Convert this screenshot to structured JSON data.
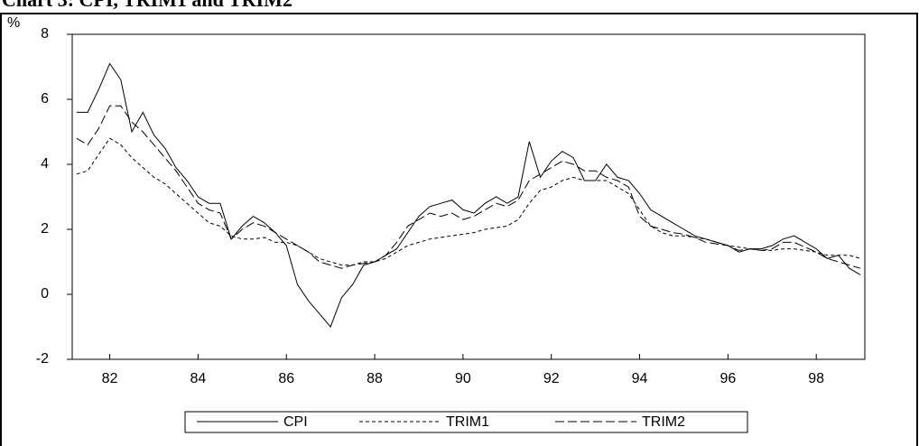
{
  "chart_data": {
    "type": "line",
    "title": "Chart 3: CPI, TRIM1 and TRIM2",
    "y_label": "%",
    "x": [
      81.25,
      81.5,
      81.75,
      82,
      82.25,
      82.5,
      82.75,
      83,
      83.25,
      83.5,
      83.75,
      84,
      84.25,
      84.5,
      84.75,
      85,
      85.25,
      85.5,
      85.75,
      86,
      86.25,
      86.5,
      86.75,
      87,
      87.25,
      87.5,
      87.75,
      88,
      88.25,
      88.5,
      88.75,
      89,
      89.25,
      89.5,
      89.75,
      90,
      90.25,
      90.5,
      90.75,
      91,
      91.25,
      91.5,
      91.75,
      92,
      92.25,
      92.5,
      92.75,
      93,
      93.25,
      93.5,
      93.75,
      94,
      94.25,
      94.5,
      94.75,
      95,
      95.25,
      95.5,
      95.75,
      96,
      96.25,
      96.5,
      96.75,
      97,
      97.25,
      97.5,
      97.75,
      98,
      98.25,
      98.5,
      98.75,
      99
    ],
    "series": [
      {
        "name": "CPI",
        "color": "#000000",
        "line_style": "solid",
        "values": [
          5.6,
          5.6,
          6.3,
          7.1,
          6.6,
          5.0,
          5.6,
          4.9,
          4.5,
          3.9,
          3.5,
          3.0,
          2.8,
          2.8,
          1.7,
          2.1,
          2.4,
          2.2,
          1.9,
          1.5,
          0.3,
          -0.2,
          -0.6,
          -1.0,
          -0.1,
          0.3,
          0.9,
          1.0,
          1.2,
          1.4,
          1.9,
          2.4,
          2.7,
          2.8,
          2.9,
          2.6,
          2.5,
          2.8,
          3.0,
          2.8,
          3.0,
          4.7,
          3.6,
          4.1,
          4.4,
          4.2,
          3.5,
          3.5,
          4.0,
          3.6,
          3.5,
          3.1,
          2.6,
          2.4,
          2.2,
          2.0,
          1.8,
          1.7,
          1.6,
          1.5,
          1.3,
          1.4,
          1.4,
          1.5,
          1.7,
          1.8,
          1.6,
          1.4,
          1.1,
          1.2,
          0.8,
          0.6
        ]
      },
      {
        "name": "TRIM1",
        "color": "#000000",
        "line_style": "short-dash",
        "values": [
          3.7,
          3.8,
          4.3,
          4.8,
          4.6,
          4.2,
          3.9,
          3.6,
          3.4,
          3.1,
          2.8,
          2.5,
          2.2,
          2.1,
          1.8,
          1.7,
          1.7,
          1.75,
          1.6,
          1.6,
          1.5,
          1.3,
          1.1,
          1.0,
          0.9,
          0.9,
          1.0,
          1.0,
          1.1,
          1.3,
          1.5,
          1.6,
          1.7,
          1.75,
          1.8,
          1.85,
          1.9,
          2.0,
          2.05,
          2.1,
          2.3,
          2.8,
          3.2,
          3.3,
          3.5,
          3.6,
          3.5,
          3.5,
          3.5,
          3.3,
          3.1,
          2.6,
          2.1,
          1.9,
          1.8,
          1.8,
          1.75,
          1.7,
          1.6,
          1.5,
          1.45,
          1.4,
          1.35,
          1.35,
          1.4,
          1.4,
          1.35,
          1.3,
          1.2,
          1.2,
          1.2,
          1.1
        ]
      },
      {
        "name": "TRIM2",
        "color": "#000000",
        "line_style": "long-dash",
        "values": [
          4.8,
          4.6,
          5.1,
          5.8,
          5.8,
          5.3,
          5.0,
          4.6,
          4.2,
          3.8,
          3.3,
          2.8,
          2.6,
          2.5,
          1.7,
          2.0,
          2.2,
          2.1,
          1.9,
          1.7,
          1.5,
          1.3,
          1.0,
          0.9,
          0.8,
          0.9,
          0.95,
          1.0,
          1.2,
          1.6,
          2.1,
          2.3,
          2.5,
          2.4,
          2.5,
          2.3,
          2.4,
          2.6,
          2.8,
          2.7,
          2.9,
          3.5,
          3.7,
          3.9,
          4.1,
          4.0,
          3.8,
          3.8,
          3.6,
          3.5,
          3.3,
          2.4,
          2.1,
          2.0,
          1.9,
          1.85,
          1.75,
          1.6,
          1.55,
          1.5,
          1.35,
          1.4,
          1.35,
          1.4,
          1.6,
          1.6,
          1.45,
          1.3,
          1.1,
          1.0,
          0.9,
          0.8
        ]
      }
    ],
    "xlim": [
      81.15,
      99.1
    ],
    "xticks": [
      82,
      84,
      86,
      88,
      90,
      92,
      94,
      96,
      98
    ],
    "ylim": [
      -2,
      8
    ],
    "yticks": [
      -2,
      0,
      2,
      4,
      6,
      8
    ],
    "grid": false,
    "legend": "bottom"
  }
}
